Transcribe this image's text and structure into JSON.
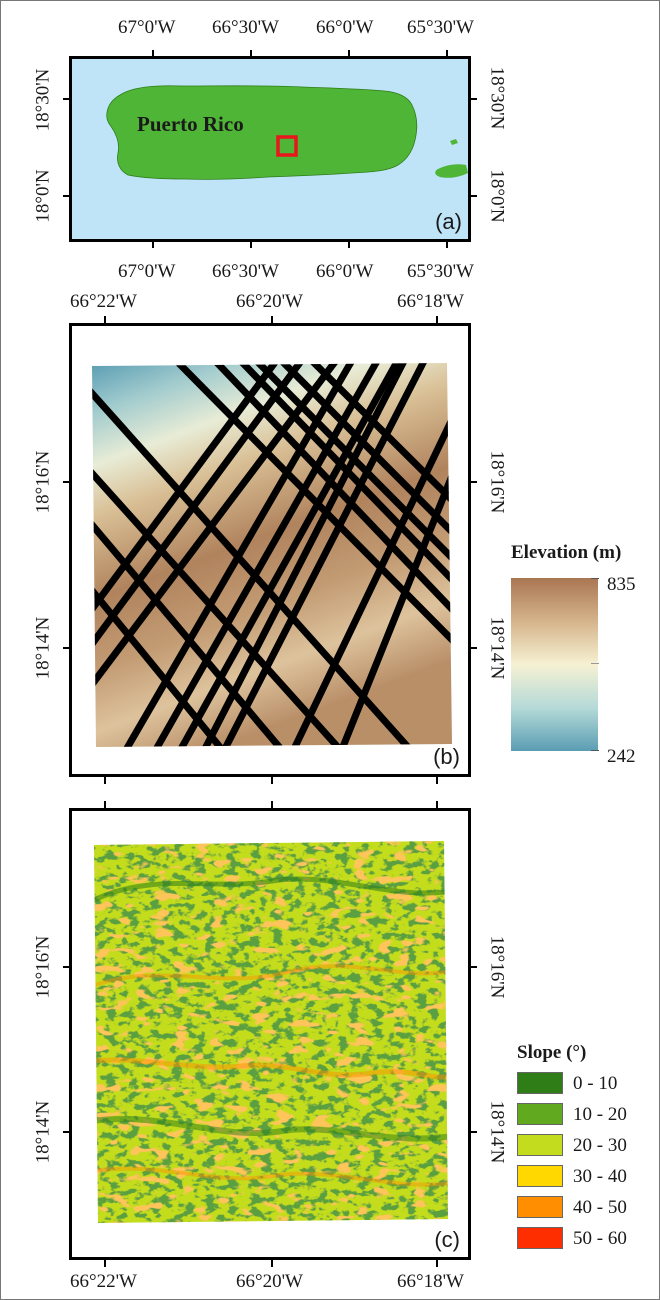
{
  "panel_a": {
    "region_label": "Puerto Rico",
    "panel_letter": "(a)",
    "lon_labels": [
      "67°0'W",
      "66°30'W",
      "66°0'W",
      "65°30'W"
    ],
    "lat_labels": [
      "18°30'N",
      "18°0'N"
    ],
    "colors": {
      "sea": "#bfe3f7",
      "land": "#4fb536",
      "study_box": "#e8171c"
    }
  },
  "panel_b": {
    "panel_letter": "(b)",
    "lon_labels": [
      "66°22'W",
      "66°20'W",
      "66°18'W"
    ],
    "lat_labels": [
      "18°16'N",
      "18°14'N"
    ],
    "legend": {
      "title": "Elevation (m)",
      "max_label": "835",
      "min_label": "242",
      "colors": [
        "#a97652",
        "#d5b48b",
        "#f6f1d3",
        "#b5dad8",
        "#5a9db3"
      ]
    },
    "track_color": "#000000"
  },
  "panel_c": {
    "panel_letter": "(c)",
    "lon_labels": [
      "66°22'W",
      "66°20'W",
      "66°18'W"
    ],
    "lat_labels": [
      "18°16'N",
      "18°14'N"
    ],
    "legend": {
      "title": "Slope (°)",
      "classes": [
        {
          "label": "0 - 10",
          "color": "#2e7d17"
        },
        {
          "label": "10 - 20",
          "color": "#61a91f"
        },
        {
          "label": "20 - 30",
          "color": "#c3dc1d"
        },
        {
          "label": "30 - 40",
          "color": "#ffd800"
        },
        {
          "label": "40 - 50",
          "color": "#ff8f00"
        },
        {
          "label": "50 - 60",
          "color": "#ff2e00"
        }
      ]
    }
  }
}
